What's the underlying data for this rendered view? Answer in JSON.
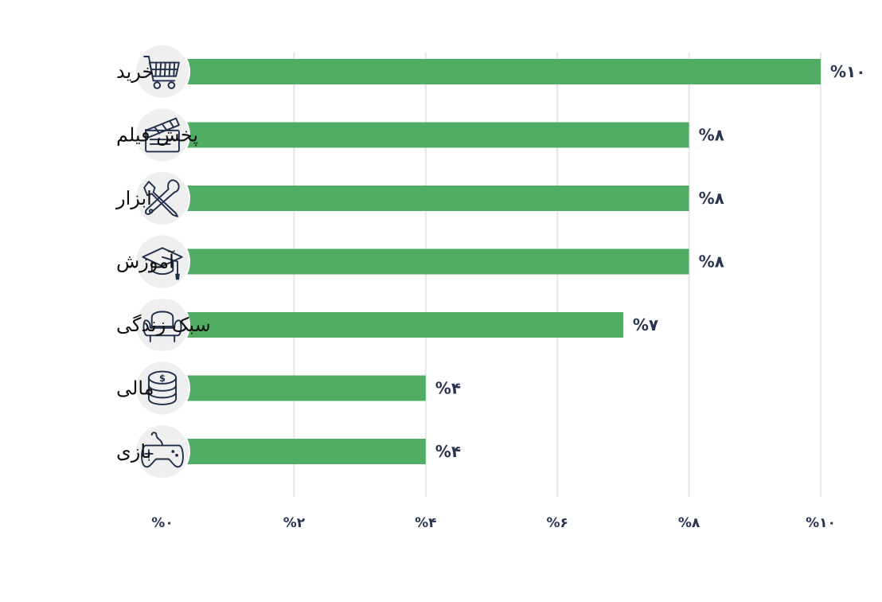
{
  "chart_data": {
    "type": "bar",
    "orientation": "horizontal",
    "categories": [
      "خرید",
      "پخش فیلم",
      "ابزار",
      "آموزش",
      "سبک زندگی",
      "مالی",
      "بازی"
    ],
    "values": [
      10,
      8,
      8,
      8,
      7,
      4,
      4
    ],
    "value_labels": [
      "%۱۰",
      "%۸",
      "%۸",
      "%۸",
      "%۷",
      "%۴",
      "%۴"
    ],
    "icons": [
      "shopping-cart-icon",
      "clapperboard-icon",
      "tools-icon",
      "graduation-cap-icon",
      "armchair-icon",
      "coin-stack-icon",
      "gamepad-icon"
    ],
    "xlim": [
      0,
      10
    ],
    "x_ticks": [
      0,
      2,
      4,
      6,
      8,
      10
    ],
    "x_tick_labels": [
      "%۰",
      "%۲",
      "%۴",
      "%۶",
      "%۸",
      "%۱۰"
    ],
    "grid": true,
    "legend": "none",
    "colors": {
      "bar": "#52ad64",
      "text": "#2a3550",
      "grid": "#e6e6e6",
      "icon_bg": "#efefef"
    }
  }
}
